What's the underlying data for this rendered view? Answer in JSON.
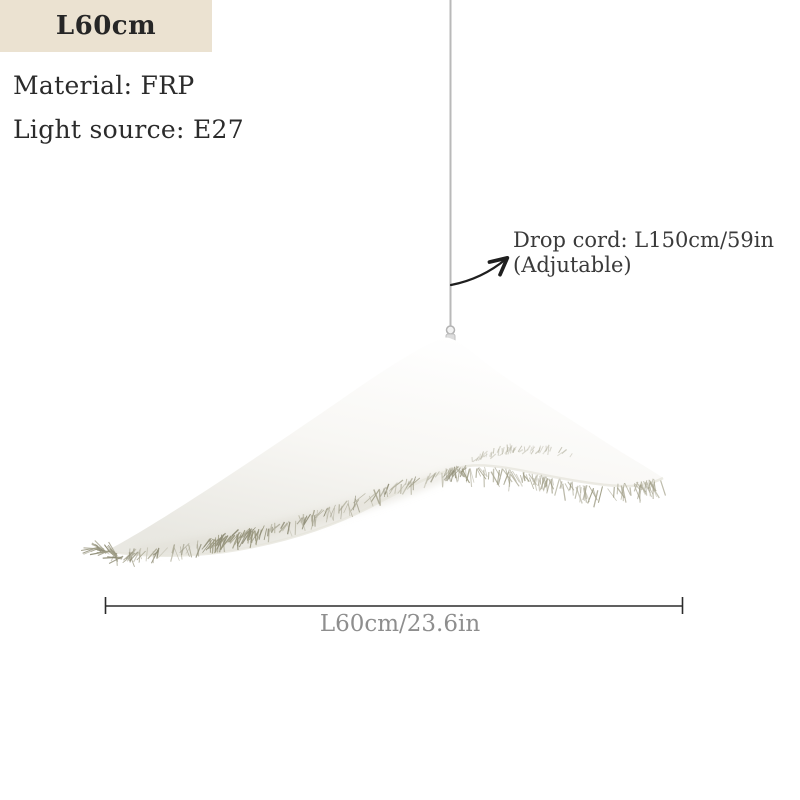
{
  "badge": {
    "label": "L60cm"
  },
  "specs": {
    "material": "Material: FRP",
    "light_source": "Light source: E27"
  },
  "cord_annotation": {
    "line1": "Drop cord: L150cm/59in",
    "line2": "(Adjutable)"
  },
  "dimension": {
    "label": "L60cm/23.6in"
  },
  "icons": {
    "cord_arrow": "curved-pointer-arrow",
    "dimension_line": "horizontal-measure-line-with-end-ticks"
  },
  "colors": {
    "page_bg": "#ffffff",
    "badge_bg": "#ebe2d1",
    "badge_text": "#262626",
    "spec_text": "#2b2b2b",
    "note_text": "#3a3a3a",
    "dim_text": "#8e8e8e",
    "dim_line": "#2b2b2b",
    "arrow": "#1f1f1f",
    "cord": "#b9b9b9",
    "fringe": "#a6a48f"
  }
}
